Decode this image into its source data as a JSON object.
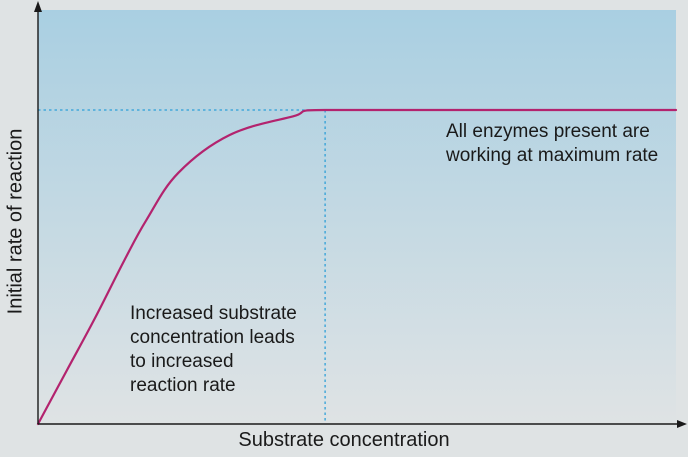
{
  "chart_data": {
    "type": "line",
    "title": "",
    "xlabel": "Substrate concentration",
    "ylabel": "Initial rate of reaction",
    "xlim": [
      0,
      1
    ],
    "ylim": [
      0,
      1
    ],
    "grid": false,
    "legend": "none",
    "series": [
      {
        "x": [
          0,
          0.045,
          0.09,
          0.135,
          0.17,
          0.22,
          0.3,
          0.4,
          0.45,
          0.7,
          1.0
        ],
        "y": [
          0,
          0.17,
          0.34,
          0.52,
          0.65,
          0.8,
          0.92,
          0.98,
          1.0,
          1.0,
          1.0
        ],
        "color": "#b3236e"
      }
    ],
    "reference_lines": {
      "vmax_y": 1.0,
      "saturation_x": 0.45,
      "color": "#2e9fd8",
      "style": "dotted"
    },
    "annotations": [
      {
        "lines": [
          "All enzymes present are",
          "working at maximum rate"
        ]
      },
      {
        "lines": [
          "Increased substrate",
          "concentration leads",
          "to increased",
          "reaction rate"
        ]
      }
    ],
    "background": {
      "top": "#a9cfe2",
      "bottom": "#dfe3e4"
    }
  }
}
